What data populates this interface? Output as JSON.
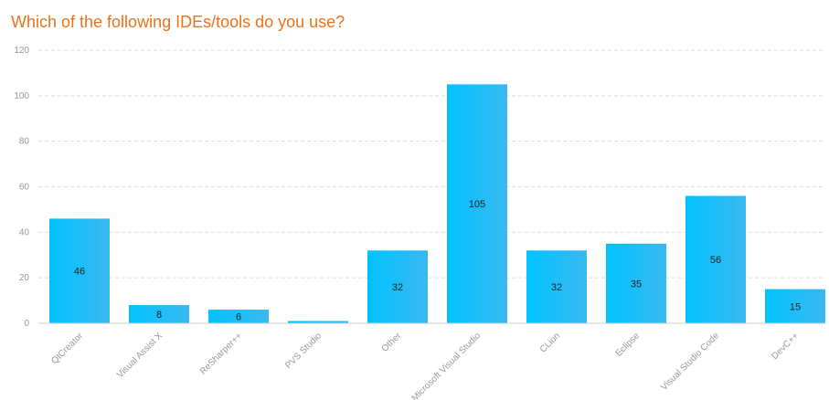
{
  "chart_data": {
    "type": "bar",
    "title": "Which of the following IDEs/tools do you use?",
    "categories": [
      "QtCreator",
      "Visual Assist X",
      "ReSharper++",
      "PVS Studio",
      "Other",
      "Microsoft Visual Studio",
      "CLion",
      "Eclipse",
      "Visual Studio Code",
      "DevC++"
    ],
    "values": [
      46,
      8,
      6,
      1,
      32,
      105,
      32,
      35,
      56,
      15
    ],
    "data_labels": [
      "46",
      "8",
      "6",
      "",
      "32",
      "105",
      "32",
      "35",
      "56",
      "15"
    ],
    "yticks": [
      0,
      20,
      40,
      60,
      80,
      100,
      120
    ],
    "ylim": [
      0,
      120
    ],
    "grid": true,
    "bar_color_start": "#00c3ff",
    "bar_color_end": "#3ab8f0",
    "title_color": "#e8731a"
  }
}
